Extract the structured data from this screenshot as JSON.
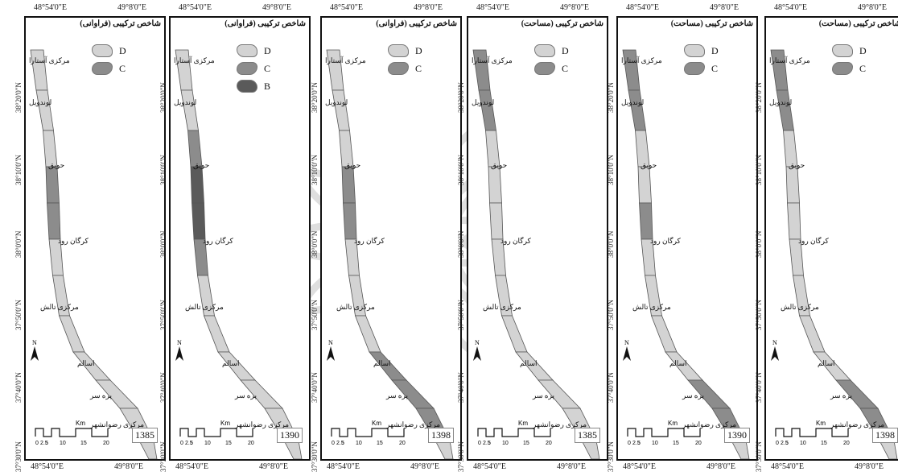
{
  "coords": {
    "lon_west": "48°54'0\"E",
    "lon_east": "49°8'0\"E",
    "lat": [
      "38°20'0\"N",
      "38°10'0\"N",
      "38°0'0\"N",
      "37°50'0\"N",
      "37°40'0\"N",
      "37°30'0\"N"
    ]
  },
  "legend_labels": {
    "D": "D",
    "C": "C",
    "B": "B"
  },
  "colors": {
    "D": "#d3d3d3",
    "C": "#8c8c8c",
    "B": "#5a5a5a",
    "outline": "#555555"
  },
  "scale": {
    "unit": "Km",
    "ticks": [
      "0",
      "2.5",
      "5",
      "10",
      "15",
      "20"
    ]
  },
  "north_label": "N",
  "places": [
    "مرکزی آستارا",
    "لوندویل",
    "حویق",
    "کرگان رود",
    "مرکزی تالش",
    "اسالم",
    "پره سر",
    "مرکزی رضوانشهر"
  ],
  "panels": [
    {
      "title": "شاخص ترکیبی (فراوانی)",
      "year": "1385",
      "legend": [
        "D",
        "C"
      ],
      "segments": [
        "D",
        "D",
        "C",
        "C",
        "D",
        "D",
        "D",
        "D",
        "D",
        "D"
      ]
    },
    {
      "title": "شاخص ترکیبی (فراوانی)",
      "year": "1390",
      "legend": [
        "D",
        "C",
        "B"
      ],
      "segments": [
        "D",
        "C",
        "B",
        "B",
        "C",
        "D",
        "D",
        "D",
        "D",
        "D"
      ]
    },
    {
      "title": "شاخص ترکیبی (فراوانی)",
      "year": "1398",
      "legend": [
        "D",
        "C"
      ],
      "segments": [
        "D",
        "D",
        "C",
        "C",
        "D",
        "D",
        "C",
        "C",
        "C",
        "D"
      ]
    },
    {
      "title": "شاخص ترکیبی (مساحت)",
      "year": "1385",
      "legend": [
        "D",
        "C"
      ],
      "segments": [
        "C",
        "D",
        "D",
        "D",
        "D",
        "D",
        "D",
        "D",
        "D",
        "D"
      ]
    },
    {
      "title": "شاخص ترکیبی (مساحت)",
      "year": "1390",
      "legend": [
        "D",
        "C"
      ],
      "segments": [
        "C",
        "D",
        "D",
        "C",
        "D",
        "D",
        "D",
        "C",
        "C",
        "D"
      ]
    },
    {
      "title": "شاخص ترکیبی (مساحت)",
      "year": "1398",
      "legend": [
        "D",
        "C"
      ],
      "segments": [
        "C",
        "D",
        "D",
        "D",
        "D",
        "D",
        "D",
        "C",
        "C",
        "D"
      ]
    }
  ]
}
